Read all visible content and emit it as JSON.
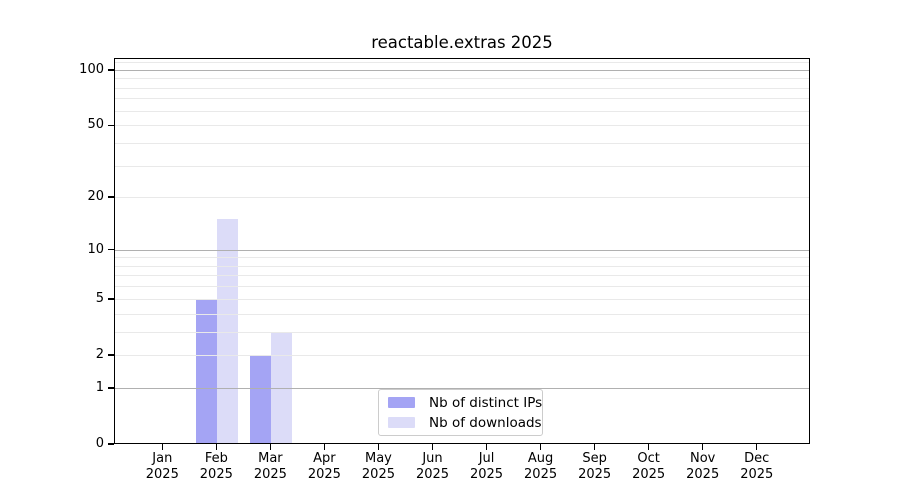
{
  "chart_data": {
    "type": "bar",
    "title": "reactable.extras 2025",
    "categories": [
      "Jan",
      "Feb",
      "Mar",
      "Apr",
      "May",
      "Jun",
      "Jul",
      "Aug",
      "Sep",
      "Oct",
      "Nov",
      "Dec"
    ],
    "category_year": "2025",
    "series": [
      {
        "name": "Nb of distinct IPs",
        "color": "#a4a4f4",
        "values": [
          0,
          5,
          2,
          0,
          0,
          0,
          0,
          0,
          0,
          0,
          0,
          0
        ]
      },
      {
        "name": "Nb of downloads",
        "color": "#dcdcf8",
        "values": [
          0,
          15,
          3,
          0,
          0,
          0,
          0,
          0,
          0,
          0,
          0,
          0
        ]
      }
    ],
    "yscale": "log10(1+x)",
    "ylim": [
      0,
      116
    ],
    "y_tick_labels": [
      0,
      1,
      2,
      5,
      10,
      20,
      50,
      100
    ],
    "y_major_gridlines": [
      1,
      10,
      100
    ],
    "y_minor_gridlines": [
      2,
      3,
      4,
      5,
      6,
      7,
      8,
      9,
      20,
      30,
      40,
      50,
      60,
      70,
      80,
      90,
      110
    ],
    "xlabel": "",
    "ylabel": "",
    "grid": true,
    "legend_position": "inside-bottom-center"
  },
  "colors": {
    "background": "#ffffff",
    "axis": "#000000",
    "major_grid": "#b0b0b0",
    "minor_grid": "#e9e9e9",
    "legend_border": "#cccccc",
    "text": "#000000"
  }
}
